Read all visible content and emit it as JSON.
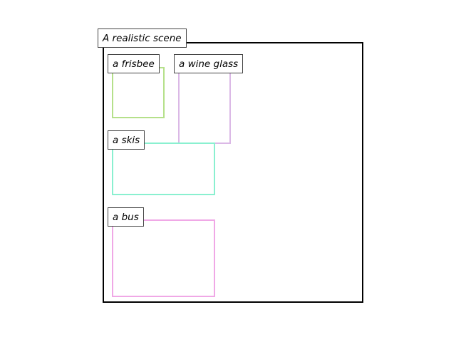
{
  "scene": {
    "title": "A realistic scene"
  },
  "objects": [
    {
      "label": "a frisbee",
      "color": "#b5e08a"
    },
    {
      "label": "a wine glass",
      "color": "#dbb8e6"
    },
    {
      "label": "a skis",
      "color": "#8af0d0"
    },
    {
      "label": "a bus",
      "color": "#f0a8e6"
    }
  ]
}
